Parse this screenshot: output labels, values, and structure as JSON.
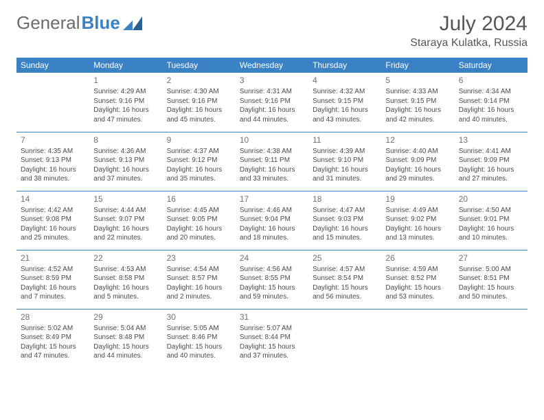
{
  "logo": {
    "word1": "General",
    "word2": "Blue"
  },
  "title": "July 2024",
  "location": "Staraya Kulatka, Russia",
  "colors": {
    "header_bg": "#3b82c4",
    "header_text": "#ffffff",
    "border": "#3b82c4",
    "text": "#4a4a4a",
    "daynum": "#707070",
    "logo_gray": "#6b6b6b",
    "logo_blue": "#3b82c4",
    "background": "#ffffff"
  },
  "fonts": {
    "title_size": 30,
    "location_size": 16,
    "th_size": 12,
    "daynum_size": 12,
    "cell_size": 10
  },
  "weekdays": [
    "Sunday",
    "Monday",
    "Tuesday",
    "Wednesday",
    "Thursday",
    "Friday",
    "Saturday"
  ],
  "weeks": [
    [
      null,
      {
        "n": "1",
        "sr": "Sunrise: 4:29 AM",
        "ss": "Sunset: 9:16 PM",
        "d1": "Daylight: 16 hours",
        "d2": "and 47 minutes."
      },
      {
        "n": "2",
        "sr": "Sunrise: 4:30 AM",
        "ss": "Sunset: 9:16 PM",
        "d1": "Daylight: 16 hours",
        "d2": "and 45 minutes."
      },
      {
        "n": "3",
        "sr": "Sunrise: 4:31 AM",
        "ss": "Sunset: 9:16 PM",
        "d1": "Daylight: 16 hours",
        "d2": "and 44 minutes."
      },
      {
        "n": "4",
        "sr": "Sunrise: 4:32 AM",
        "ss": "Sunset: 9:15 PM",
        "d1": "Daylight: 16 hours",
        "d2": "and 43 minutes."
      },
      {
        "n": "5",
        "sr": "Sunrise: 4:33 AM",
        "ss": "Sunset: 9:15 PM",
        "d1": "Daylight: 16 hours",
        "d2": "and 42 minutes."
      },
      {
        "n": "6",
        "sr": "Sunrise: 4:34 AM",
        "ss": "Sunset: 9:14 PM",
        "d1": "Daylight: 16 hours",
        "d2": "and 40 minutes."
      }
    ],
    [
      {
        "n": "7",
        "sr": "Sunrise: 4:35 AM",
        "ss": "Sunset: 9:13 PM",
        "d1": "Daylight: 16 hours",
        "d2": "and 38 minutes."
      },
      {
        "n": "8",
        "sr": "Sunrise: 4:36 AM",
        "ss": "Sunset: 9:13 PM",
        "d1": "Daylight: 16 hours",
        "d2": "and 37 minutes."
      },
      {
        "n": "9",
        "sr": "Sunrise: 4:37 AM",
        "ss": "Sunset: 9:12 PM",
        "d1": "Daylight: 16 hours",
        "d2": "and 35 minutes."
      },
      {
        "n": "10",
        "sr": "Sunrise: 4:38 AM",
        "ss": "Sunset: 9:11 PM",
        "d1": "Daylight: 16 hours",
        "d2": "and 33 minutes."
      },
      {
        "n": "11",
        "sr": "Sunrise: 4:39 AM",
        "ss": "Sunset: 9:10 PM",
        "d1": "Daylight: 16 hours",
        "d2": "and 31 minutes."
      },
      {
        "n": "12",
        "sr": "Sunrise: 4:40 AM",
        "ss": "Sunset: 9:09 PM",
        "d1": "Daylight: 16 hours",
        "d2": "and 29 minutes."
      },
      {
        "n": "13",
        "sr": "Sunrise: 4:41 AM",
        "ss": "Sunset: 9:09 PM",
        "d1": "Daylight: 16 hours",
        "d2": "and 27 minutes."
      }
    ],
    [
      {
        "n": "14",
        "sr": "Sunrise: 4:42 AM",
        "ss": "Sunset: 9:08 PM",
        "d1": "Daylight: 16 hours",
        "d2": "and 25 minutes."
      },
      {
        "n": "15",
        "sr": "Sunrise: 4:44 AM",
        "ss": "Sunset: 9:07 PM",
        "d1": "Daylight: 16 hours",
        "d2": "and 22 minutes."
      },
      {
        "n": "16",
        "sr": "Sunrise: 4:45 AM",
        "ss": "Sunset: 9:05 PM",
        "d1": "Daylight: 16 hours",
        "d2": "and 20 minutes."
      },
      {
        "n": "17",
        "sr": "Sunrise: 4:46 AM",
        "ss": "Sunset: 9:04 PM",
        "d1": "Daylight: 16 hours",
        "d2": "and 18 minutes."
      },
      {
        "n": "18",
        "sr": "Sunrise: 4:47 AM",
        "ss": "Sunset: 9:03 PM",
        "d1": "Daylight: 16 hours",
        "d2": "and 15 minutes."
      },
      {
        "n": "19",
        "sr": "Sunrise: 4:49 AM",
        "ss": "Sunset: 9:02 PM",
        "d1": "Daylight: 16 hours",
        "d2": "and 13 minutes."
      },
      {
        "n": "20",
        "sr": "Sunrise: 4:50 AM",
        "ss": "Sunset: 9:01 PM",
        "d1": "Daylight: 16 hours",
        "d2": "and 10 minutes."
      }
    ],
    [
      {
        "n": "21",
        "sr": "Sunrise: 4:52 AM",
        "ss": "Sunset: 8:59 PM",
        "d1": "Daylight: 16 hours",
        "d2": "and 7 minutes."
      },
      {
        "n": "22",
        "sr": "Sunrise: 4:53 AM",
        "ss": "Sunset: 8:58 PM",
        "d1": "Daylight: 16 hours",
        "d2": "and 5 minutes."
      },
      {
        "n": "23",
        "sr": "Sunrise: 4:54 AM",
        "ss": "Sunset: 8:57 PM",
        "d1": "Daylight: 16 hours",
        "d2": "and 2 minutes."
      },
      {
        "n": "24",
        "sr": "Sunrise: 4:56 AM",
        "ss": "Sunset: 8:55 PM",
        "d1": "Daylight: 15 hours",
        "d2": "and 59 minutes."
      },
      {
        "n": "25",
        "sr": "Sunrise: 4:57 AM",
        "ss": "Sunset: 8:54 PM",
        "d1": "Daylight: 15 hours",
        "d2": "and 56 minutes."
      },
      {
        "n": "26",
        "sr": "Sunrise: 4:59 AM",
        "ss": "Sunset: 8:52 PM",
        "d1": "Daylight: 15 hours",
        "d2": "and 53 minutes."
      },
      {
        "n": "27",
        "sr": "Sunrise: 5:00 AM",
        "ss": "Sunset: 8:51 PM",
        "d1": "Daylight: 15 hours",
        "d2": "and 50 minutes."
      }
    ],
    [
      {
        "n": "28",
        "sr": "Sunrise: 5:02 AM",
        "ss": "Sunset: 8:49 PM",
        "d1": "Daylight: 15 hours",
        "d2": "and 47 minutes."
      },
      {
        "n": "29",
        "sr": "Sunrise: 5:04 AM",
        "ss": "Sunset: 8:48 PM",
        "d1": "Daylight: 15 hours",
        "d2": "and 44 minutes."
      },
      {
        "n": "30",
        "sr": "Sunrise: 5:05 AM",
        "ss": "Sunset: 8:46 PM",
        "d1": "Daylight: 15 hours",
        "d2": "and 40 minutes."
      },
      {
        "n": "31",
        "sr": "Sunrise: 5:07 AM",
        "ss": "Sunset: 8:44 PM",
        "d1": "Daylight: 15 hours",
        "d2": "and 37 minutes."
      },
      null,
      null,
      null
    ]
  ]
}
